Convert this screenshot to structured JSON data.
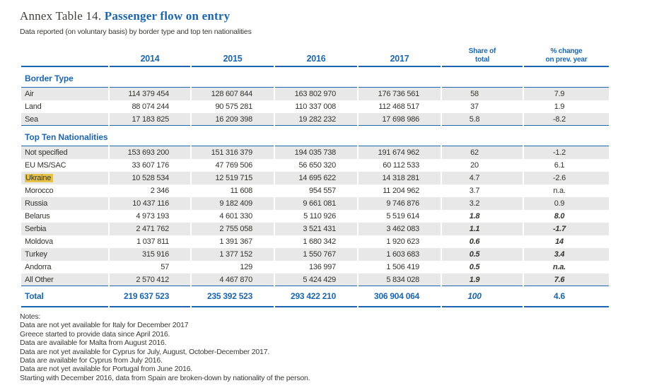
{
  "title": {
    "prefix": "Annex Table 14.",
    "main": "Passenger flow on entry"
  },
  "subtitle": "Data reported (on voluntary basis) by border type and top ten nationalities",
  "colors": {
    "accent_blue": "#1b66ad",
    "row_stripe": "#e8e8e8",
    "highlight_yellow": "#e4c24b"
  },
  "table": {
    "header": {
      "y2014": "2014",
      "y2015": "2015",
      "y2016": "2016",
      "y2017": "2017",
      "share": "Share of\ntotal",
      "change": "% change\non prev. year"
    },
    "sections": [
      {
        "title": "Border Type",
        "rows": [
          {
            "label": "Air",
            "values": [
              "114 379 454",
              "128 607 844",
              "163 802 970",
              "176 736 561",
              "58",
              "7.9"
            ],
            "emphasis": false,
            "highlight": false
          },
          {
            "label": "Land",
            "values": [
              "88 074 244",
              "90 575 281",
              "110 337 008",
              "112 468 517",
              "37",
              "1.9"
            ],
            "emphasis": false,
            "highlight": false
          },
          {
            "label": "Sea",
            "values": [
              "17 183 825",
              "16 209 398",
              "19 282 232",
              "17 698 986",
              "5.8",
              "-8.2"
            ],
            "emphasis": false,
            "highlight": false
          }
        ]
      },
      {
        "title": "Top Ten Nationalities",
        "rows": [
          {
            "label": "Not specified",
            "values": [
              "153 693 200",
              "151 316 379",
              "194 035 738",
              "191 674 962",
              "62",
              "-1.2"
            ],
            "emphasis": false,
            "highlight": false
          },
          {
            "label": "EU MS/SAC",
            "values": [
              "33 607 176",
              "47 769 506",
              "56 650 320",
              "60 112 533",
              "20",
              "6.1"
            ],
            "emphasis": false,
            "highlight": false
          },
          {
            "label": "Ukraine",
            "values": [
              "10 528 534",
              "12 519 715",
              "14 695 622",
              "14 318 281",
              "4.7",
              "-2.6"
            ],
            "emphasis": false,
            "highlight": true
          },
          {
            "label": "Morocco",
            "values": [
              "2 346",
              "11 608",
              "954 557",
              "11 204 962",
              "3.7",
              "n.a."
            ],
            "emphasis": false,
            "highlight": false
          },
          {
            "label": "Russia",
            "values": [
              "10 437 116",
              "9 182 409",
              "9 661 081",
              "9 746 876",
              "3.2",
              "0.9"
            ],
            "emphasis": false,
            "highlight": false
          },
          {
            "label": "Belarus",
            "values": [
              "4 973 193",
              "4 601 330",
              "5 110 926",
              "5 519 614",
              "1.8",
              "8.0"
            ],
            "emphasis": true,
            "highlight": false
          },
          {
            "label": "Serbia",
            "values": [
              "2 471 762",
              "2 755 058",
              "3 521 431",
              "3 462 083",
              "1.1",
              "-1.7"
            ],
            "emphasis": true,
            "highlight": false
          },
          {
            "label": "Moldova",
            "values": [
              "1 037 811",
              "1 391 367",
              "1 680 342",
              "1 920 623",
              "0.6",
              "14"
            ],
            "emphasis": true,
            "highlight": false
          },
          {
            "label": "Turkey",
            "values": [
              "315 916",
              "1 377 152",
              "1 550 767",
              "1 603 683",
              "0.5",
              "3.4"
            ],
            "emphasis": true,
            "highlight": false
          },
          {
            "label": "Andorra",
            "values": [
              "57",
              "129",
              "136 997",
              "1 506 419",
              "0.5",
              "n.a."
            ],
            "emphasis": true,
            "highlight": false
          },
          {
            "label": "All Other",
            "values": [
              "2 570 412",
              "4 467 870",
              "5 424 429",
              "5 834 028",
              "1.9",
              "7.6"
            ],
            "emphasis": true,
            "highlight": false
          }
        ]
      }
    ],
    "total": {
      "label": "Total",
      "values": [
        "219 637 523",
        "235 392 523",
        "293 422 210",
        "306 904 064",
        "100",
        "4.6"
      ]
    }
  },
  "notes": {
    "heading": "Notes:",
    "lines": [
      "Data are not yet available for Italy for December 2017",
      "Greece started to provide data since April 2016.",
      "Data are available for Malta from August 2016.",
      "Data are not yet available for Cyprus for July, August, October-December 2017.",
      "Data are available for Cyprus from July 2016.",
      "Data are not yet available for Portugal from June 2016.",
      "Starting with December 2016, data from Spain are broken-down by nationality of the person."
    ]
  }
}
